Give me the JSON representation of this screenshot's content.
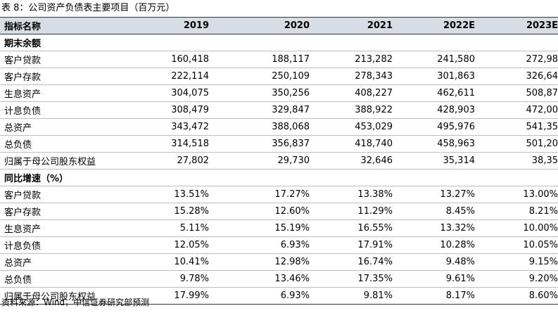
{
  "caption": "表 8：公司资产负债表主要项目（百万元）",
  "header": [
    "指标名称",
    "2019",
    "2020",
    "2021",
    "2022E",
    "2023E"
  ],
  "sections": [
    {
      "title": "期末余额",
      "rows": [
        {
          "label": "客户贷款",
          "values": [
            "160,418",
            "188,117",
            "213,282",
            "241,580",
            "272,98"
          ]
        },
        {
          "label": "客户存款",
          "values": [
            "222,114",
            "250,109",
            "278,343",
            "301,863",
            "326,64"
          ]
        },
        {
          "label": "生息资产",
          "values": [
            "304,075",
            "350,256",
            "408,227",
            "462,611",
            "508,87"
          ]
        },
        {
          "label": "计息负债",
          "values": [
            "308,479",
            "329,847",
            "388,922",
            "428,903",
            "472,00"
          ]
        },
        {
          "label": "总资产",
          "values": [
            "343,472",
            "388,068",
            "453,029",
            "495,976",
            "541,35"
          ]
        },
        {
          "label": "总负债",
          "values": [
            "314,518",
            "356,837",
            "418,740",
            "458,963",
            "501,20"
          ]
        },
        {
          "label": "归属于母公司股东权益",
          "values": [
            "27,802",
            "29,730",
            "32,646",
            "35,314",
            "38,35"
          ]
        }
      ]
    },
    {
      "title": "同比增速（%）",
      "rows": [
        {
          "label": "客户贷款",
          "values": [
            "13.51%",
            "17.27%",
            "13.38%",
            "13.27%",
            "13.00%"
          ]
        },
        {
          "label": "客户存款",
          "values": [
            "15.28%",
            "12.60%",
            "11.29%",
            "8.45%",
            "8.21%"
          ]
        },
        {
          "label": "生息资产",
          "values": [
            "5.11%",
            "15.19%",
            "16.55%",
            "13.32%",
            "10.00%"
          ]
        },
        {
          "label": "计息负债",
          "values": [
            "12.05%",
            "6.93%",
            "17.91%",
            "10.28%",
            "10.05%"
          ]
        },
        {
          "label": "总资产",
          "values": [
            "10.41%",
            "12.98%",
            "16.74%",
            "9.48%",
            "9.15%"
          ]
        },
        {
          "label": "总负债",
          "values": [
            "9.78%",
            "13.46%",
            "17.35%",
            "9.61%",
            "9.20%"
          ]
        },
        {
          "label": "归属于母公司股东权益",
          "values": [
            "17.99%",
            "6.93%",
            "9.81%",
            "8.17%",
            "8.60%"
          ]
        }
      ]
    }
  ],
  "source": "资料来源：Wind，中信证券研究部预测"
}
